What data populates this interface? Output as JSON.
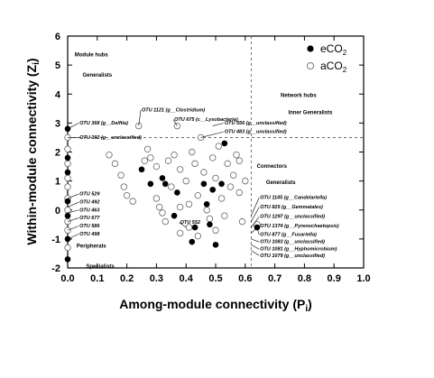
{
  "chart_data": {
    "type": "scatter",
    "xlabel": "Among-module connectivity (P",
    "xlabel_sub": "i",
    "xlabel_close": ")",
    "ylabel": "Within-module connectivity (Z",
    "ylabel_sub": "i",
    "ylabel_close": ")",
    "xlim": [
      0.0,
      1.0
    ],
    "ylim": [
      -2,
      6
    ],
    "xticks": [
      "0.0",
      "0.1",
      "0.2",
      "0.3",
      "0.4",
      "0.5",
      "0.6",
      "0.7",
      "0.8",
      "0.9",
      "1.0"
    ],
    "yticks": [
      "-2",
      "-1",
      "0",
      "1",
      "2",
      "3",
      "4",
      "5",
      "6"
    ],
    "thresholds": {
      "x": 0.62,
      "y": 2.5
    },
    "legend_position": "top-right",
    "series": [
      {
        "name": "eCO",
        "name_sub": "2",
        "marker": "filled",
        "color": "#000000",
        "points": [
          [
            0.0,
            2.8
          ],
          [
            0.0,
            1.8
          ],
          [
            0.0,
            1.3
          ],
          [
            0.0,
            0.3
          ],
          [
            0.0,
            -0.2
          ],
          [
            0.0,
            -1.0
          ],
          [
            0.0,
            -1.7
          ],
          [
            0.25,
            1.4
          ],
          [
            0.28,
            0.9
          ],
          [
            0.32,
            1.1
          ],
          [
            0.33,
            0.9
          ],
          [
            0.36,
            -0.2
          ],
          [
            0.37,
            0.6
          ],
          [
            0.46,
            0.9
          ],
          [
            0.47,
            0.2
          ],
          [
            0.48,
            -0.5
          ],
          [
            0.49,
            0.7
          ],
          [
            0.5,
            -1.2
          ],
          [
            0.52,
            0.9
          ],
          [
            0.53,
            2.3
          ],
          [
            0.43,
            -0.6
          ],
          [
            0.42,
            -1.1
          ],
          [
            0.64,
            -0.6
          ]
        ]
      },
      {
        "name": "aCO",
        "name_sub": "2",
        "marker": "open",
        "color": "#666666",
        "points": [
          [
            0.0,
            2.5
          ],
          [
            0.0,
            2.1
          ],
          [
            0.0,
            1.6
          ],
          [
            0.0,
            1.1
          ],
          [
            0.0,
            0.8
          ],
          [
            0.0,
            0.4
          ],
          [
            0.0,
            0.0
          ],
          [
            0.0,
            -0.4
          ],
          [
            0.0,
            -0.7
          ],
          [
            0.0,
            -1.3
          ],
          [
            0.14,
            1.9
          ],
          [
            0.16,
            1.6
          ],
          [
            0.18,
            1.2
          ],
          [
            0.19,
            0.8
          ],
          [
            0.2,
            0.5
          ],
          [
            0.22,
            0.3
          ],
          [
            0.24,
            2.9
          ],
          [
            0.26,
            1.7
          ],
          [
            0.27,
            2.1
          ],
          [
            0.28,
            1.8
          ],
          [
            0.3,
            1.5
          ],
          [
            0.3,
            0.4
          ],
          [
            0.31,
            0.1
          ],
          [
            0.32,
            -0.1
          ],
          [
            0.33,
            -0.4
          ],
          [
            0.34,
            1.7
          ],
          [
            0.35,
            0.8
          ],
          [
            0.36,
            1.9
          ],
          [
            0.37,
            2.9
          ],
          [
            0.38,
            1.4
          ],
          [
            0.38,
            0.1
          ],
          [
            0.38,
            -0.8
          ],
          [
            0.4,
            1.0
          ],
          [
            0.41,
            0.2
          ],
          [
            0.41,
            -0.6
          ],
          [
            0.42,
            2.0
          ],
          [
            0.43,
            1.6
          ],
          [
            0.44,
            0.5
          ],
          [
            0.44,
            -0.9
          ],
          [
            0.45,
            2.5
          ],
          [
            0.46,
            1.3
          ],
          [
            0.47,
            0.0
          ],
          [
            0.48,
            -0.3
          ],
          [
            0.49,
            1.8
          ],
          [
            0.5,
            1.1
          ],
          [
            0.5,
            -0.7
          ],
          [
            0.51,
            2.2
          ],
          [
            0.52,
            0.4
          ],
          [
            0.53,
            -0.2
          ],
          [
            0.54,
            1.6
          ],
          [
            0.55,
            0.8
          ],
          [
            0.56,
            1.2
          ],
          [
            0.57,
            1.9
          ],
          [
            0.58,
            0.6
          ],
          [
            0.59,
            -0.4
          ],
          [
            0.6,
            1.0
          ],
          [
            0.58,
            1.7
          ],
          [
            0.64,
            -0.5
          ]
        ]
      }
    ],
    "region_labels": [
      {
        "text": "Module hubs",
        "x": 0.08,
        "y": 5.3
      },
      {
        "text": "Generalists",
        "x": 0.1,
        "y": 4.6
      },
      {
        "text": "Network hubs",
        "x": 0.78,
        "y": 3.9
      },
      {
        "text": "Inner Generalists",
        "x": 0.82,
        "y": 3.3
      },
      {
        "text": "Connectors",
        "x": 0.69,
        "y": 1.45
      },
      {
        "text": "Generalists",
        "x": 0.72,
        "y": 0.9
      },
      {
        "text": "Peripherals",
        "x": 0.08,
        "y": -1.3
      },
      {
        "text": "Specialists",
        "x": 0.11,
        "y": -2.0
      }
    ],
    "annotations": [
      {
        "text": "OTU 1121 (g__Clostridium)",
        "x": 0.25,
        "y": 3.4,
        "ax": 0.24,
        "ay": 2.9
      },
      {
        "text": "OTU 675 (c__Lysobacteria)",
        "x": 0.36,
        "y": 3.07,
        "ax": 0.37,
        "ay": 2.9
      },
      {
        "text": "OTU 556 (g__unclassified)",
        "x": 0.53,
        "y": 2.95,
        "ax": 0.49,
        "ay": 2.9
      },
      {
        "text": "OTU 483 (g__unclassified)",
        "x": 0.53,
        "y": 2.65,
        "ax": 0.45,
        "ay": 2.5
      },
      {
        "text": "OTU 368 (g__Delftia)",
        "x": 0.04,
        "y": 2.95,
        "ax": 0.0,
        "ay": 2.8
      },
      {
        "text": "OTU 392 (g__unclassified)",
        "x": 0.04,
        "y": 2.45,
        "ax": 0.0,
        "ay": 2.5
      },
      {
        "text": "OTU 1145 (g__Candelariella)",
        "x": 0.65,
        "y": 0.38,
        "ax": 0.62,
        "ay": -0.2
      },
      {
        "text": "OTU 825 (g__Gemmatales)",
        "x": 0.65,
        "y": 0.05,
        "ax": 0.62,
        "ay": -0.4
      },
      {
        "text": "OTU 1297 (g__unclassified)",
        "x": 0.65,
        "y": -0.28,
        "ax": 0.62,
        "ay": -0.6
      },
      {
        "text": "OTU 1374 (g__Pyrenochaetopsis)",
        "x": 0.65,
        "y": -0.6,
        "ax": 0.62,
        "ay": -0.8
      },
      {
        "text": "OTU 877 (g__Fusariella)",
        "x": 0.65,
        "y": -0.9,
        "ax": 0.64,
        "ay": -0.6
      },
      {
        "text": "OTU 1083 (g__unclassified)",
        "x": 0.65,
        "y": -1.15,
        "ax": 0.62,
        "ay": -1.0
      },
      {
        "text": "OTU 1081 (g__Hyphomicrobium)",
        "x": 0.65,
        "y": -1.4,
        "ax": 0.62,
        "ay": -1.2
      },
      {
        "text": "OTU 1079 (g__unclassified)",
        "x": 0.65,
        "y": -1.62,
        "ax": 0.62,
        "ay": -1.4
      },
      {
        "text": "OTU 552",
        "x": 0.38,
        "y": -0.48,
        "ax": 0.4,
        "ay": -0.6
      },
      {
        "text": "OTU 529",
        "x": 0.04,
        "y": 0.5,
        "ax": 0.0,
        "ay": 0.4
      },
      {
        "text": "OTU 492",
        "x": 0.04,
        "y": 0.22,
        "ax": 0.0,
        "ay": 0.1
      },
      {
        "text": "OTU 463",
        "x": 0.04,
        "y": -0.05,
        "ax": 0.0,
        "ay": -0.1
      },
      {
        "text": "OTU 677",
        "x": 0.04,
        "y": -0.32,
        "ax": 0.0,
        "ay": -0.4
      },
      {
        "text": "OTU 586",
        "x": 0.04,
        "y": -0.6,
        "ax": 0.0,
        "ay": -0.7
      },
      {
        "text": "OTU 498",
        "x": 0.04,
        "y": -0.88,
        "ax": 0.0,
        "ay": -1.0
      }
    ]
  }
}
